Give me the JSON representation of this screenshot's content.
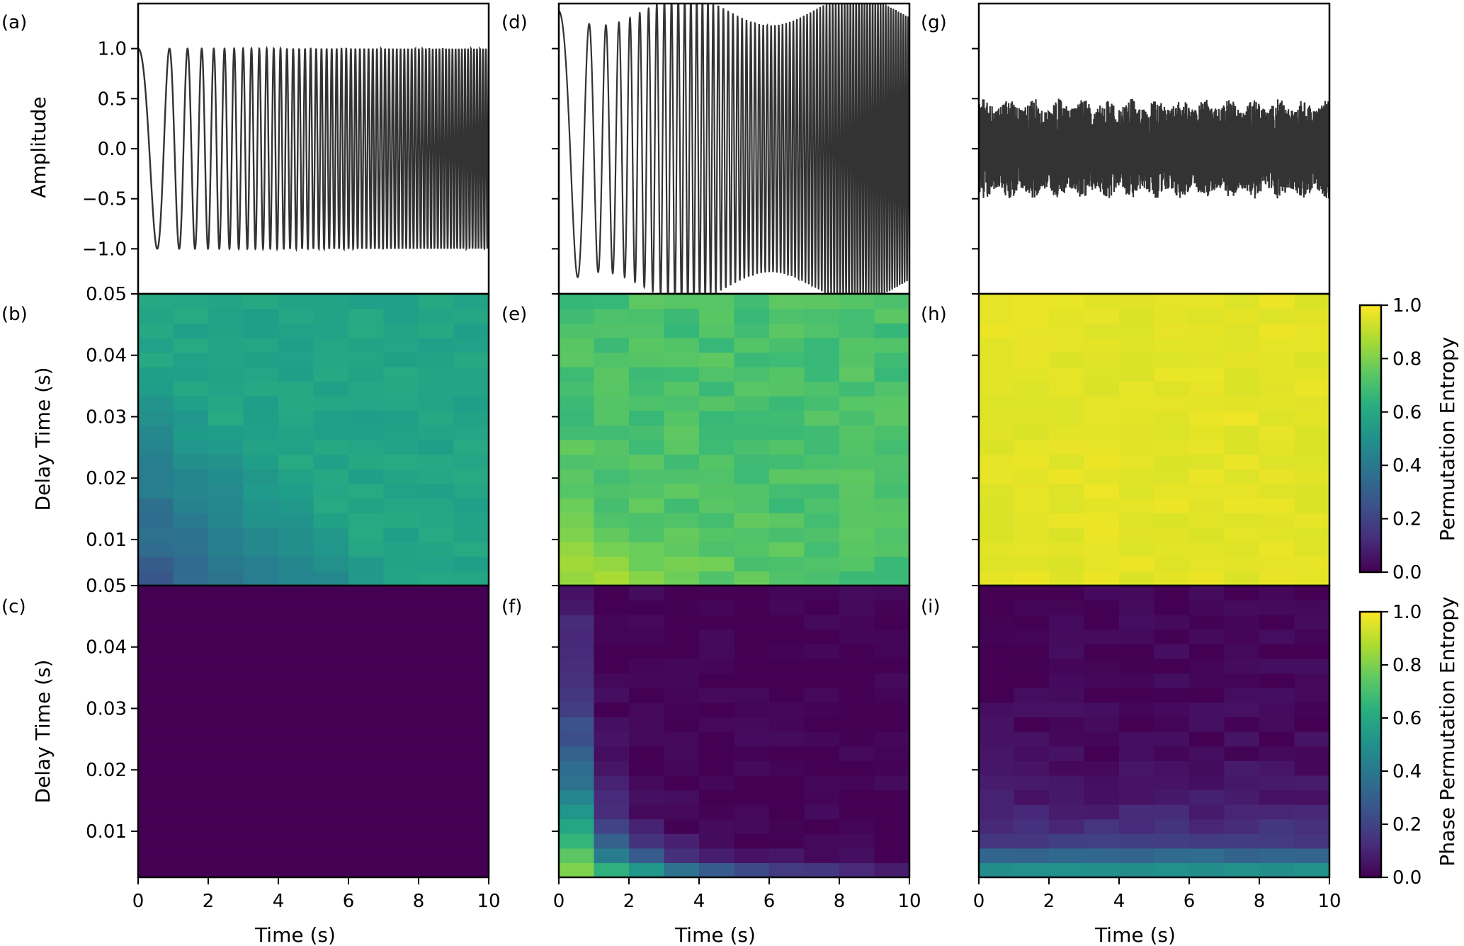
{
  "chart_data": {
    "type": "heatmap",
    "layout": "3x3 grid, colorbars on the right of rows 2 and 3",
    "colormap": "viridis",
    "x_axis": {
      "label": "Time (s)",
      "range": [
        0,
        10
      ],
      "ticks": [
        "0",
        "2",
        "4",
        "6",
        "8",
        "10"
      ]
    },
    "row1": {
      "ylabel": "Amplitude",
      "ylim": [
        -1.45,
        1.45
      ],
      "ticks": [
        "1.0",
        "0.5",
        "0.0",
        "−0.5",
        "−1.0"
      ],
      "tick_values": [
        1.0,
        0.5,
        0.0,
        -0.5,
        -1.0
      ]
    },
    "heat_rows": {
      "ylabel": "Delay Time (s)",
      "ylim": [
        0.0025,
        0.05
      ],
      "ticks_top": [
        "0.05",
        "0.04",
        "0.03",
        "0.02",
        "0.01"
      ],
      "tick_values_top": [
        0.05,
        0.04,
        0.03,
        0.02,
        0.01
      ],
      "ticks_bottom": [
        "0.05",
        "0.04",
        "0.03",
        "0.02",
        "0.01"
      ],
      "tick_values_bottom": [
        0.05,
        0.04,
        0.03,
        0.02,
        0.01
      ],
      "n_time_bins": 10,
      "n_delay_bins": 20
    },
    "panels": [
      {
        "label": "(a)",
        "kind": "signal",
        "signal": "chirp",
        "amplitude": 1.0
      },
      {
        "label": "(b)",
        "kind": "heatmap",
        "quantity": "Permutation Entropy",
        "model": "chirp_pe"
      },
      {
        "label": "(c)",
        "kind": "heatmap",
        "quantity": "Phase Permutation Entropy",
        "model": "constant",
        "value": 0.0
      },
      {
        "label": "(d)",
        "kind": "signal",
        "signal": "modulated chirp",
        "amplitude": 1.45
      },
      {
        "label": "(e)",
        "kind": "heatmap",
        "quantity": "Permutation Entropy",
        "model": "mod_pe"
      },
      {
        "label": "(f)",
        "kind": "heatmap",
        "quantity": "Phase Permutation Entropy",
        "model": "mod_ppe"
      },
      {
        "label": "(g)",
        "kind": "signal",
        "signal": "noise",
        "amplitude": 0.5
      },
      {
        "label": "(h)",
        "kind": "heatmap",
        "quantity": "Permutation Entropy",
        "model": "noise_pe"
      },
      {
        "label": "(i)",
        "kind": "heatmap",
        "quantity": "Phase Permutation Entropy",
        "model": "noise_ppe"
      }
    ],
    "colorbars": [
      {
        "label": "Permutation Entropy",
        "range": [
          0,
          1
        ],
        "ticks": [
          "1.0",
          "0.8",
          "0.6",
          "0.4",
          "0.2",
          "0.0"
        ],
        "tick_values": [
          1.0,
          0.8,
          0.6,
          0.4,
          0.2,
          0.0
        ]
      },
      {
        "label": "Phase Permutation Entropy",
        "range": [
          0,
          1
        ],
        "ticks": [
          "1.0",
          "0.8",
          "0.6",
          "0.4",
          "0.2",
          "0.0"
        ],
        "tick_values": [
          1.0,
          0.8,
          0.6,
          0.4,
          0.2,
          0.0
        ]
      }
    ],
    "colors": {
      "line": "#333333",
      "frame": "#000000"
    }
  }
}
